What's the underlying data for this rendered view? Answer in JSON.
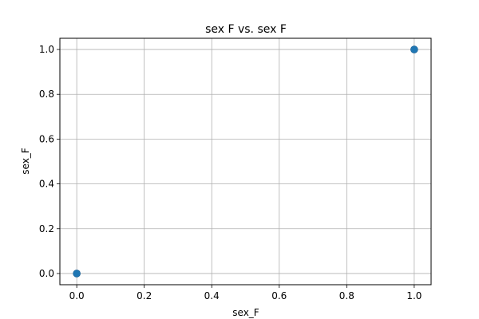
{
  "chart_data": {
    "type": "scatter",
    "title": "sex F vs. sex F",
    "xlabel": "sex_F",
    "ylabel": "sex_F",
    "xlim": [
      -0.05,
      1.05
    ],
    "ylim": [
      -0.05,
      1.05
    ],
    "xticks": [
      0.0,
      0.2,
      0.4,
      0.6,
      0.8,
      1.0
    ],
    "yticks": [
      0.0,
      0.2,
      0.4,
      0.6,
      0.8,
      1.0
    ],
    "xtick_labels": [
      "0.0",
      "0.2",
      "0.4",
      "0.6",
      "0.8",
      "1.0"
    ],
    "ytick_labels": [
      "0.0",
      "0.2",
      "0.4",
      "0.6",
      "0.8",
      "1.0"
    ],
    "grid": true,
    "point_color": "#1f77b4",
    "points": [
      {
        "x": 0.0,
        "y": 0.0
      },
      {
        "x": 1.0,
        "y": 1.0
      }
    ]
  }
}
